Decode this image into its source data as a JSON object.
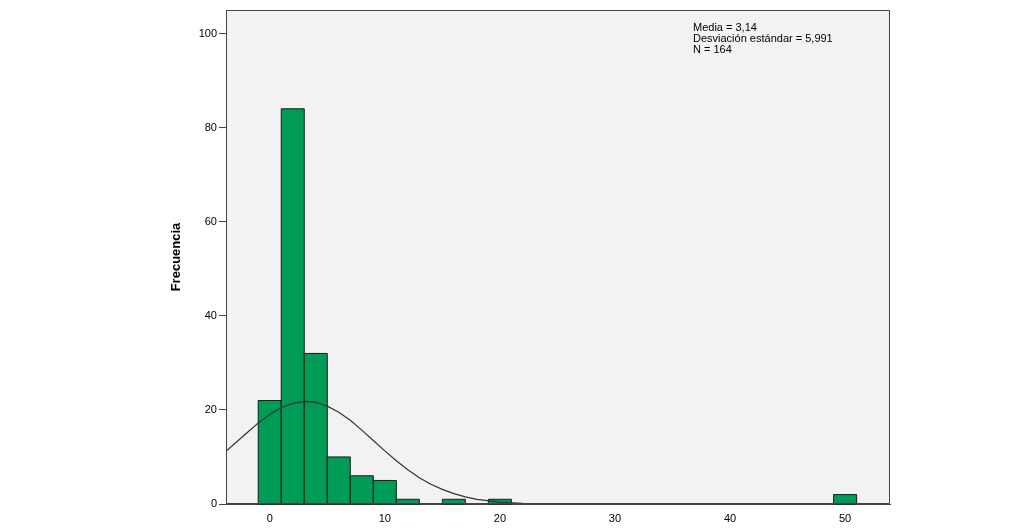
{
  "chart_data": {
    "type": "histogram",
    "ylabel": "Frecuencia",
    "bins": [
      -1,
      1,
      3,
      5,
      7,
      9,
      11,
      13,
      15,
      17,
      19,
      21,
      49,
      51
    ],
    "values": [
      22,
      84,
      32,
      10,
      6,
      5,
      1,
      0,
      1,
      0,
      1,
      0,
      2
    ],
    "color": "#009b55",
    "series": [
      {
        "type": "line",
        "color": "#333333",
        "x": [
          -3.8,
          -2,
          -1,
          0,
          1,
          2,
          3.14,
          4,
          5,
          6,
          7,
          8,
          9,
          10,
          11,
          12,
          13,
          14,
          15,
          16,
          17,
          18,
          20,
          22,
          25,
          28
        ],
        "values": [
          11.2,
          15.1,
          17.2,
          19,
          20.5,
          21.4,
          21.8,
          21.6,
          20.8,
          19.5,
          17.8,
          15.7,
          13.5,
          11.3,
          9.2,
          7.3,
          5.6,
          4.2,
          3.1,
          2.2,
          1.5,
          1,
          0.4,
          0.15,
          0.02,
          0
        ]
      }
    ],
    "xlim": [
      -3.8,
      53.9
    ],
    "ylim": [
      0,
      105
    ],
    "xticks": [
      0,
      10,
      20,
      30,
      40,
      50
    ],
    "yticks": [
      0,
      20,
      40,
      60,
      80,
      100
    ],
    "grid": false,
    "legend": false,
    "marker": "none",
    "line_style": "solid",
    "annotations": [
      "Media = 3,14",
      "Desviación estándar = 5,991",
      "N = 164"
    ]
  }
}
